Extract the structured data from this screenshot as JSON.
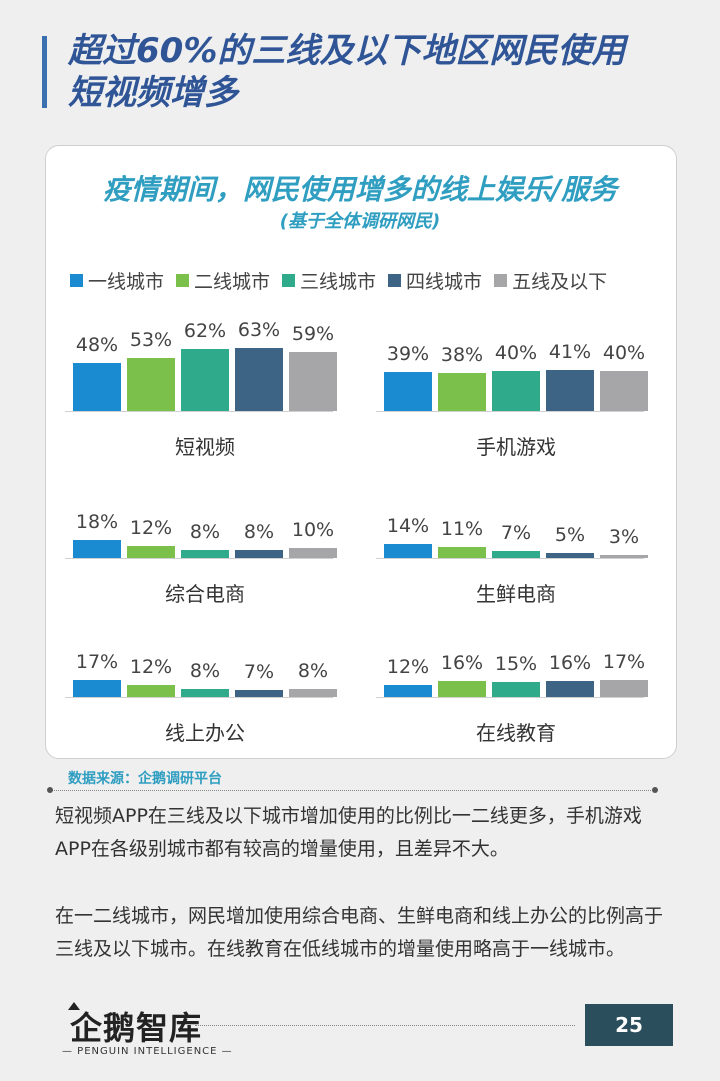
{
  "page": {
    "title_line1": "超过60%的三线及以下地区网民使用",
    "title_line2": "短视频增多",
    "source": "数据来源：企鹅调研平台",
    "paragraph1": "短视频APP在三线及以下城市增加使用的比例比一二线更多，手机游戏APP在各级别城市都有较高的增量使用，且差异不大。",
    "paragraph2": "在一二线城市，网民增加使用综合电商、生鲜电商和线上办公的比例高于三线及以下城市。在线教育在低线城市的增量使用略高于一线城市。",
    "logo_text": "企鹅智库",
    "logo_sub": "— PENGUIN INTELLIGENCE —",
    "page_number": "25"
  },
  "chart_data": {
    "type": "bar",
    "title": "疫情期间，网民使用增多的线上娱乐/服务",
    "subtitle": "(基于全体调研网民)",
    "legend_position": "top",
    "grid": false,
    "unit": "%",
    "series": [
      {
        "name": "一线城市",
        "color": "#1a8bd1"
      },
      {
        "name": "二线城市",
        "color": "#7cc04c"
      },
      {
        "name": "三线城市",
        "color": "#2fab8c"
      },
      {
        "name": "四线城市",
        "color": "#3d6484"
      },
      {
        "name": "五线及以下",
        "color": "#a6a6a8"
      }
    ],
    "groups": [
      {
        "category": "短视频",
        "values": [
          48,
          53,
          62,
          63,
          59
        ]
      },
      {
        "category": "手机游戏",
        "values": [
          39,
          38,
          40,
          41,
          40
        ]
      },
      {
        "category": "综合电商",
        "values": [
          18,
          12,
          8,
          8,
          10
        ]
      },
      {
        "category": "生鲜电商",
        "values": [
          14,
          11,
          7,
          5,
          3
        ]
      },
      {
        "category": "线上办公",
        "values": [
          17,
          12,
          8,
          7,
          8
        ]
      },
      {
        "category": "在线教育",
        "values": [
          12,
          16,
          15,
          16,
          17
        ]
      }
    ]
  }
}
